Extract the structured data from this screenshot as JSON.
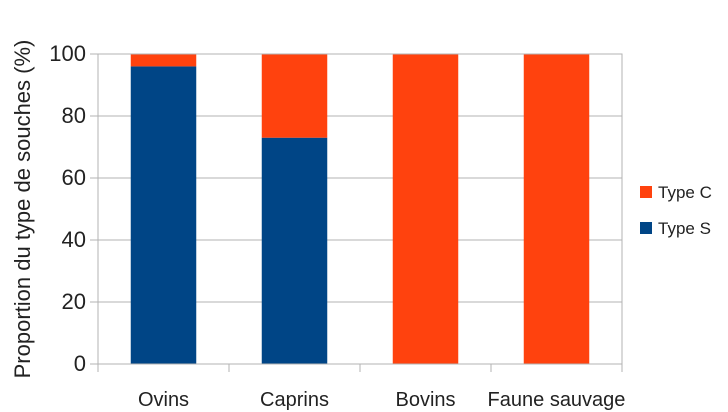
{
  "chart_data": {
    "type": "bar",
    "stacked": true,
    "categories": [
      "Ovins",
      "Caprins",
      "Bovins",
      "Faune sauvage"
    ],
    "series": [
      {
        "name": "Type S",
        "color": "#004586",
        "values": [
          96,
          73,
          0,
          0
        ]
      },
      {
        "name": "Type C",
        "color": "#ff420e",
        "values": [
          4,
          27,
          100,
          100
        ]
      }
    ],
    "legend_order": [
      "Type C",
      "Type S"
    ],
    "ylabel": "Proportion du type de souches (%)",
    "xlabel": "",
    "ylim": [
      0,
      100
    ],
    "yticks": [
      0,
      20,
      40,
      60,
      80,
      100
    ],
    "grid": true,
    "legend_position": "right"
  }
}
